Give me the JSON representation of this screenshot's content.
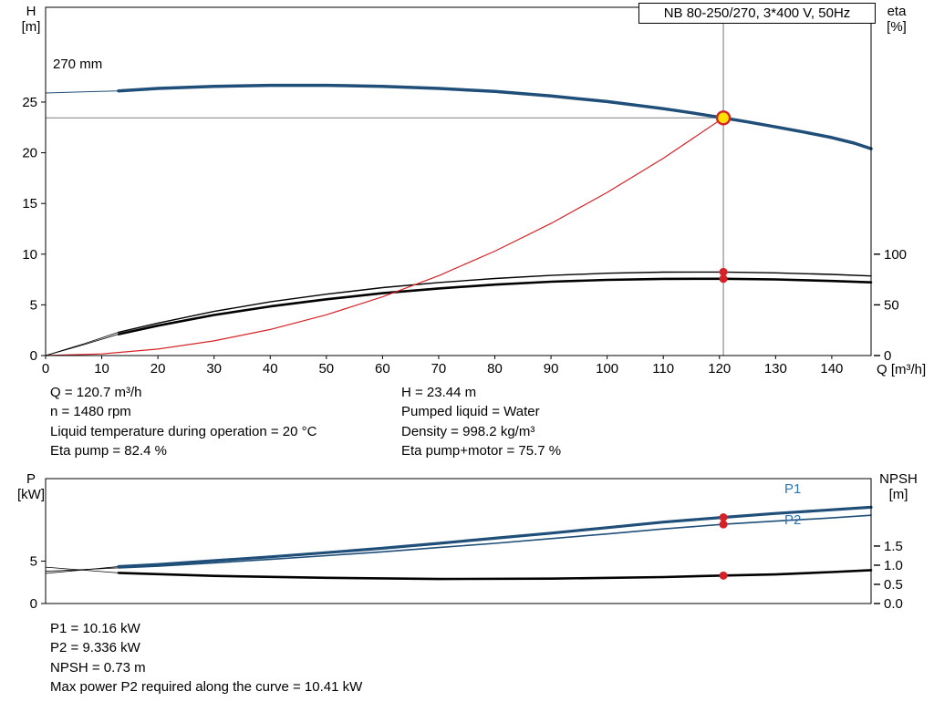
{
  "title_box": "NB 80-250/270, 3*400 V, 50Hz",
  "impeller_label": "270 mm",
  "colors": {
    "curve_blue": "#1f4e79",
    "label_blue": "#2e74b5",
    "black": "#000000",
    "red": "#d62227",
    "gray": "#8c8c8c",
    "duty_fill": "#ffe000",
    "duty_stroke": "#d62227"
  },
  "chart_data": [
    {
      "type": "line",
      "name": "QH and efficiency curves",
      "x_axis": {
        "label": "Q [m³/h]",
        "min": 0,
        "max": 147,
        "tick_labels": [
          "0",
          "10",
          "20",
          "30",
          "40",
          "50",
          "60",
          "70",
          "80",
          "90",
          "100",
          "110",
          "120",
          "130",
          "140"
        ]
      },
      "y_left": {
        "title": [
          "H",
          "[m]"
        ],
        "min": 0,
        "max": 34.35,
        "tick_labels": [
          "0",
          "5",
          "10",
          "15",
          "20",
          "25"
        ]
      },
      "y_right": {
        "title": [
          "eta",
          "[%]"
        ],
        "min": 0,
        "max": 343.5,
        "tick_labels": [
          "0",
          "50",
          "100"
        ]
      },
      "series": [
        {
          "name": "head-curve-lead",
          "axis": "left",
          "color": "curve_blue",
          "width": 1,
          "points": [
            [
              0,
              25.9
            ],
            [
              6,
              26.0
            ],
            [
              13,
              26.1
            ]
          ]
        },
        {
          "name": "head-curve",
          "axis": "left",
          "color": "curve_blue",
          "width": 3.5,
          "points": [
            [
              13,
              26.1
            ],
            [
              20,
              26.35
            ],
            [
              30,
              26.55
            ],
            [
              40,
              26.65
            ],
            [
              50,
              26.65
            ],
            [
              60,
              26.55
            ],
            [
              70,
              26.35
            ],
            [
              80,
              26.05
            ],
            [
              90,
              25.6
            ],
            [
              100,
              25.05
            ],
            [
              110,
              24.35
            ],
            [
              115,
              23.95
            ],
            [
              120.7,
              23.44
            ],
            [
              125,
              23.05
            ],
            [
              130,
              22.55
            ],
            [
              135,
              22.05
            ],
            [
              140,
              21.5
            ],
            [
              144,
              20.95
            ],
            [
              147,
              20.4
            ]
          ]
        },
        {
          "name": "eta-lead-1",
          "axis": "right",
          "color": "black",
          "width": 0.8,
          "points": [
            [
              0,
              0
            ],
            [
              7,
              12
            ],
            [
              13,
              23
            ]
          ]
        },
        {
          "name": "eta-lead-2",
          "axis": "right",
          "color": "black",
          "width": 0.8,
          "points": [
            [
              0,
              0
            ],
            [
              7,
              11
            ],
            [
              13,
              21
            ]
          ]
        },
        {
          "name": "eta-pump-curve",
          "axis": "right",
          "color": "black",
          "width": 1.4,
          "points": [
            [
              13,
              23
            ],
            [
              20,
              32
            ],
            [
              30,
              43.5
            ],
            [
              40,
              53
            ],
            [
              50,
              60.5
            ],
            [
              60,
              67
            ],
            [
              70,
              72
            ],
            [
              80,
              76
            ],
            [
              90,
              79
            ],
            [
              100,
              81.2
            ],
            [
              110,
              82.3
            ],
            [
              120.7,
              82.4
            ],
            [
              130,
              81.6
            ],
            [
              140,
              80
            ],
            [
              147,
              78.5
            ]
          ]
        },
        {
          "name": "eta-pump-motor-curve",
          "axis": "right",
          "color": "black",
          "width": 2.6,
          "points": [
            [
              13,
              21
            ],
            [
              20,
              29.5
            ],
            [
              30,
              40
            ],
            [
              40,
              48.5
            ],
            [
              50,
              55.5
            ],
            [
              60,
              61.5
            ],
            [
              70,
              66.2
            ],
            [
              80,
              70
            ],
            [
              90,
              72.8
            ],
            [
              100,
              74.6
            ],
            [
              110,
              75.6
            ],
            [
              120.7,
              75.7
            ],
            [
              130,
              75.1
            ],
            [
              140,
              73.6
            ],
            [
              147,
              72.2
            ]
          ]
        },
        {
          "name": "system-curve",
          "axis": "left",
          "color": "red",
          "width": 1.2,
          "points": [
            [
              0,
              0
            ],
            [
              10,
              0.16
            ],
            [
              20,
              0.64
            ],
            [
              30,
              1.45
            ],
            [
              40,
              2.57
            ],
            [
              50,
              4.02
            ],
            [
              60,
              5.79
            ],
            [
              70,
              7.88
            ],
            [
              80,
              10.3
            ],
            [
              90,
              13.03
            ],
            [
              100,
              16.09
            ],
            [
              110,
              19.46
            ],
            [
              120.7,
              23.44
            ]
          ]
        }
      ],
      "ref_lines": [
        {
          "type": "v",
          "q": 120.7
        },
        {
          "type": "h",
          "value": 23.44,
          "q_to": 120.7
        }
      ],
      "markers": [
        {
          "name": "eta-pump-point",
          "q": 120.7,
          "value": 82.4,
          "axis": "right",
          "style": "dot",
          "r": 4.5
        },
        {
          "name": "eta-pump-motor-point",
          "q": 120.7,
          "value": 75.7,
          "axis": "right",
          "style": "dot",
          "r": 4.5
        },
        {
          "name": "duty-point",
          "q": 120.7,
          "value": 23.44,
          "axis": "left",
          "style": "duty",
          "r": 7
        }
      ]
    },
    {
      "type": "line",
      "name": "Power and NPSH curves",
      "x_axis": {
        "label": "",
        "min": 0,
        "max": 147,
        "tick_labels": []
      },
      "y_left": {
        "title": [
          "P",
          "[kW]"
        ],
        "min": 0,
        "max": 14.73,
        "tick_labels": [
          "0",
          "5"
        ]
      },
      "y_right": {
        "title": [
          "NPSH",
          "[m]"
        ],
        "min": 0,
        "max": 3.26,
        "tick_labels": [
          "0.0",
          "0.5",
          "1.0",
          "1.5"
        ]
      },
      "series": [
        {
          "name": "p1-curve-lead",
          "axis": "left",
          "color": "black",
          "width": 0.8,
          "points": [
            [
              0,
              3.55
            ],
            [
              13,
              4.35
            ]
          ]
        },
        {
          "name": "p2-curve-lead",
          "axis": "left",
          "color": "black",
          "width": 0.8,
          "points": [
            [
              0,
              3.8
            ],
            [
              13,
              4.2
            ]
          ]
        },
        {
          "name": "npsh-curve-lead",
          "axis": "right",
          "color": "black",
          "width": 0.8,
          "points": [
            [
              0,
              0.95
            ],
            [
              13,
              0.8
            ]
          ]
        },
        {
          "name": "p1-curve",
          "axis": "left",
          "color": "curve_blue",
          "width": 3.2,
          "points": [
            [
              13,
              4.35
            ],
            [
              20,
              4.6
            ],
            [
              30,
              5.05
            ],
            [
              40,
              5.5
            ],
            [
              50,
              6.0
            ],
            [
              60,
              6.52
            ],
            [
              70,
              7.1
            ],
            [
              80,
              7.7
            ],
            [
              90,
              8.3
            ],
            [
              100,
              8.95
            ],
            [
              110,
              9.6
            ],
            [
              120.7,
              10.16
            ],
            [
              130,
              10.62
            ],
            [
              140,
              11.05
            ],
            [
              147,
              11.35
            ]
          ]
        },
        {
          "name": "p2-curve",
          "axis": "left",
          "color": "curve_blue",
          "width": 1.6,
          "points": [
            [
              13,
              4.2
            ],
            [
              20,
              4.4
            ],
            [
              30,
              4.8
            ],
            [
              40,
              5.2
            ],
            [
              50,
              5.65
            ],
            [
              60,
              6.1
            ],
            [
              70,
              6.6
            ],
            [
              80,
              7.1
            ],
            [
              90,
              7.65
            ],
            [
              100,
              8.2
            ],
            [
              110,
              8.8
            ],
            [
              120.7,
              9.34
            ],
            [
              130,
              9.72
            ],
            [
              140,
              10.1
            ],
            [
              147,
              10.41
            ]
          ]
        },
        {
          "name": "npsh-curve",
          "axis": "right",
          "color": "black",
          "width": 2.6,
          "points": [
            [
              13,
              0.8
            ],
            [
              30,
              0.72
            ],
            [
              50,
              0.67
            ],
            [
              70,
              0.64
            ],
            [
              90,
              0.65
            ],
            [
              110,
              0.69
            ],
            [
              120.7,
              0.73
            ],
            [
              130,
              0.76
            ],
            [
              140,
              0.82
            ],
            [
              147,
              0.87
            ]
          ]
        }
      ],
      "ref_lines": [],
      "markers": [
        {
          "name": "p1-point",
          "q": 120.7,
          "value": 10.16,
          "axis": "left",
          "style": "dot",
          "r": 4.5
        },
        {
          "name": "p2-point",
          "q": 120.7,
          "value": 9.34,
          "axis": "left",
          "style": "dot",
          "r": 4.5
        },
        {
          "name": "npsh-point",
          "q": 120.7,
          "value": 0.73,
          "axis": "right",
          "style": "dot",
          "r": 4.5
        }
      ],
      "curve_labels": [
        {
          "text": "P1"
        },
        {
          "text": "P2"
        }
      ]
    }
  ],
  "info_top": {
    "left": [
      "Q = 120.7 m³/h",
      "n = 1480 rpm",
      "Liquid temperature during operation = 20 °C",
      "Eta pump = 82.4 %"
    ],
    "right": [
      "H = 23.44 m",
      "Pumped liquid = Water",
      "Density = 998.2 kg/m³",
      "Eta pump+motor = 75.7 %"
    ]
  },
  "info_bottom": [
    "P1 = 10.16 kW",
    "P2 = 9.336 kW",
    "NPSH = 0.73 m",
    "Max power P2 required along the curve = 10.41 kW"
  ]
}
